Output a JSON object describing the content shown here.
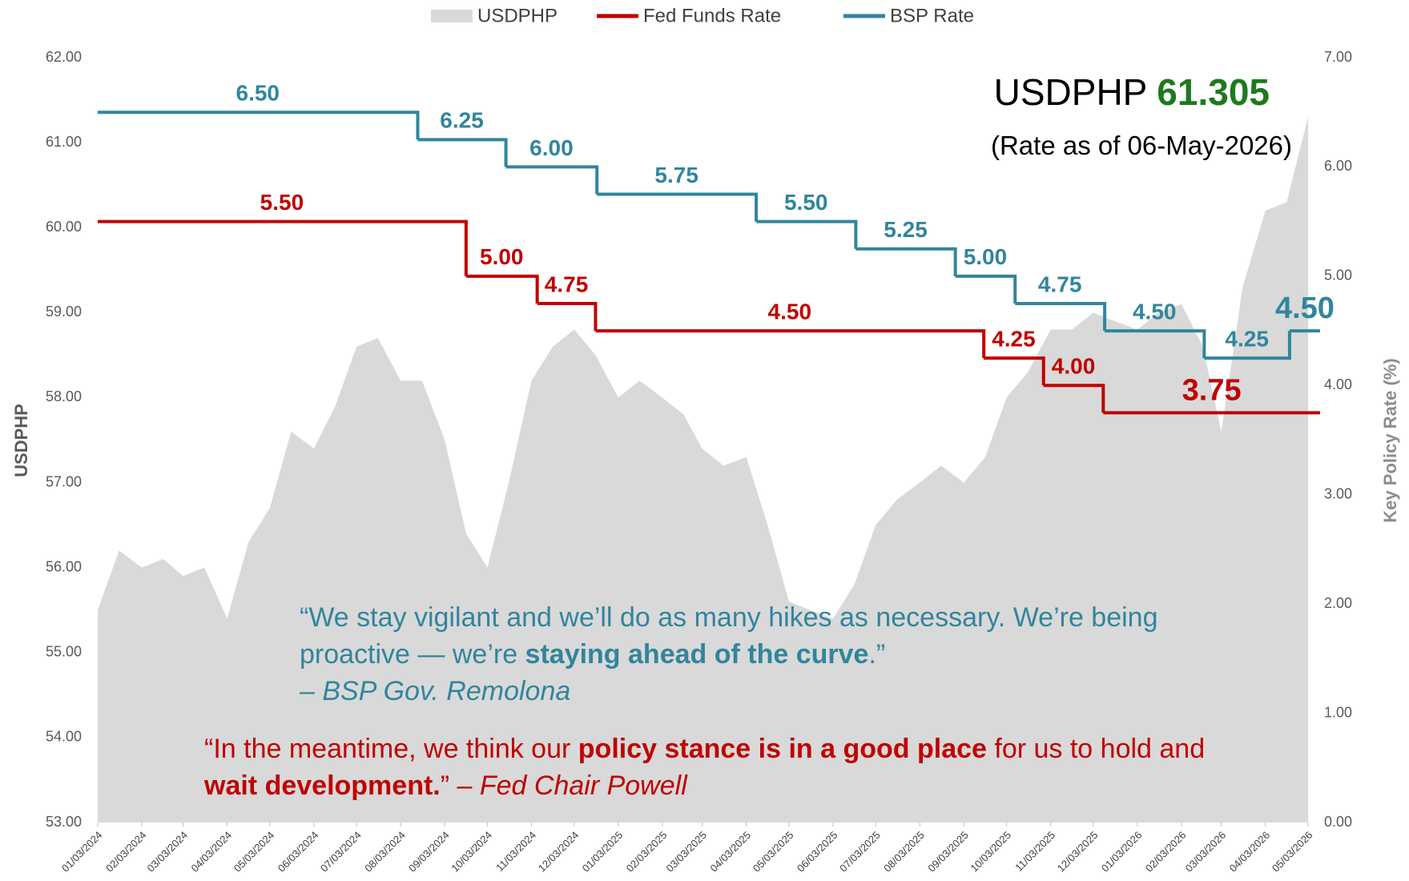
{
  "chart_data": {
    "type": "area-step",
    "xlim": [
      "01/03/2024",
      "05/03/2026"
    ],
    "xticks": [
      "01/03/2024",
      "02/03/2024",
      "03/03/2024",
      "04/03/2024",
      "05/03/2024",
      "06/03/2024",
      "07/03/2024",
      "08/03/2024",
      "09/03/2024",
      "10/03/2024",
      "11/03/2024",
      "12/03/2024",
      "01/03/2025",
      "02/03/2025",
      "03/03/2025",
      "04/03/2025",
      "05/03/2025",
      "06/03/2025",
      "07/03/2025",
      "08/03/2025",
      "09/03/2025",
      "10/03/2025",
      "11/03/2025",
      "12/03/2025",
      "01/03/2026",
      "02/03/2026",
      "03/03/2026",
      "04/03/2026",
      "05/03/2026"
    ],
    "ylabel": "USDPHP",
    "ylim": [
      53,
      62
    ],
    "yticks": [
      {
        "value": 53,
        "label": "53.00"
      },
      {
        "value": 54,
        "label": "54.00"
      },
      {
        "value": 55,
        "label": "55.00"
      },
      {
        "value": 56,
        "label": "56.00"
      },
      {
        "value": 57,
        "label": "57.00"
      },
      {
        "value": 58,
        "label": "58.00"
      },
      {
        "value": 59,
        "label": "59.00"
      },
      {
        "value": 60,
        "label": "60.00"
      },
      {
        "value": 61,
        "label": "61.00"
      },
      {
        "value": 62,
        "label": "62.00"
      }
    ],
    "y2label": "Key Policy Rate (%)",
    "y2lim": [
      0,
      7
    ],
    "y2ticks": [
      {
        "value": 0,
        "label": "0.00"
      },
      {
        "value": 1,
        "label": "1.00"
      },
      {
        "value": 2,
        "label": "2.00"
      },
      {
        "value": 3,
        "label": "3.00"
      },
      {
        "value": 4,
        "label": "4.00"
      },
      {
        "value": 5,
        "label": "5.00"
      },
      {
        "value": 6,
        "label": "6.00"
      },
      {
        "value": 7,
        "label": "7.00"
      }
    ],
    "series": [
      {
        "name": "USDPHP",
        "kind": "area",
        "color": "#d9d9d9",
        "x": [
          "01/03/2024",
          "01/18/2024",
          "02/03/2024",
          "02/18/2024",
          "03/03/2024",
          "03/18/2024",
          "04/03/2024",
          "04/18/2024",
          "05/03/2024",
          "05/18/2024",
          "06/03/2024",
          "06/18/2024",
          "07/03/2024",
          "07/18/2024",
          "08/03/2024",
          "08/18/2024",
          "09/03/2024",
          "09/18/2024",
          "10/03/2024",
          "10/18/2024",
          "11/03/2024",
          "11/18/2024",
          "12/03/2024",
          "12/18/2024",
          "01/03/2025",
          "01/18/2025",
          "02/03/2025",
          "02/18/2025",
          "03/03/2025",
          "03/18/2025",
          "04/03/2025",
          "04/18/2025",
          "05/03/2025",
          "05/18/2025",
          "06/03/2025",
          "06/18/2025",
          "07/03/2025",
          "07/18/2025",
          "08/03/2025",
          "08/18/2025",
          "09/03/2025",
          "09/18/2025",
          "10/03/2025",
          "10/18/2025",
          "11/03/2025",
          "11/18/2025",
          "12/03/2025",
          "12/18/2025",
          "01/03/2026",
          "01/18/2026",
          "02/03/2026",
          "02/18/2026",
          "03/03/2026",
          "03/18/2026",
          "04/03/2026",
          "04/18/2026",
          "05/03/2026"
        ],
        "values": [
          55.5,
          56.2,
          56.0,
          56.1,
          55.9,
          56.0,
          55.4,
          56.3,
          56.7,
          57.6,
          57.4,
          57.9,
          58.6,
          58.7,
          58.2,
          58.2,
          57.5,
          56.4,
          56.0,
          57.0,
          58.2,
          58.6,
          58.8,
          58.5,
          58.0,
          58.2,
          58.0,
          57.8,
          57.4,
          57.2,
          57.3,
          56.5,
          55.6,
          55.5,
          55.4,
          55.8,
          56.5,
          56.8,
          57.0,
          57.2,
          57.0,
          57.3,
          58.0,
          58.3,
          58.8,
          58.8,
          59.0,
          58.9,
          58.8,
          59.0,
          59.1,
          58.6,
          57.6,
          59.3,
          60.2,
          60.3,
          61.3
        ]
      },
      {
        "name": "Fed Funds Rate",
        "kind": "step",
        "axis": "y2",
        "color": "#c00000",
        "x": [
          "01/03/2024",
          "09/18/2024",
          "11/07/2024",
          "12/18/2024",
          "09/17/2025",
          "10/29/2025",
          "12/10/2025"
        ],
        "values": [
          5.5,
          5.0,
          4.75,
          4.5,
          4.25,
          4.0,
          3.75
        ],
        "value_labels": [
          "5.50",
          "5.00",
          "4.75",
          "4.50",
          "4.25",
          "4.00",
          "3.75"
        ]
      },
      {
        "name": "BSP Rate",
        "kind": "step",
        "axis": "y2",
        "color": "#31859c",
        "x": [
          "01/03/2024",
          "08/15/2024",
          "10/16/2024",
          "12/19/2024",
          "04/10/2025",
          "06/19/2025",
          "08/28/2025",
          "10/09/2025",
          "12/11/2025",
          "02/19/2026",
          "04/20/2026"
        ],
        "values": [
          6.5,
          6.25,
          6.0,
          5.75,
          5.5,
          5.25,
          5.0,
          4.75,
          4.5,
          4.25,
          4.5
        ],
        "value_labels": [
          "6.50",
          "6.25",
          "6.00",
          "5.75",
          "5.50",
          "5.25",
          "5.00",
          "4.75",
          "4.50",
          "4.25",
          "4.50"
        ]
      }
    ],
    "legend": "top",
    "annotation": {
      "label": "USDPHP",
      "value": 61.305,
      "color": "#1e7a1e",
      "note": "(Rate as of 06-May-2026)"
    },
    "quotes": [
      {
        "color": "#31859c",
        "segments": [
          {
            "text": "“We stay vigilant and we’ll do as many hikes as necessary. We’re being proactive — we’re ",
            "style": "normal"
          },
          {
            "text": "staying ahead of the curve",
            "style": "bold"
          },
          {
            "text": ".”",
            "style": "normal"
          },
          {
            "text": "– BSP Gov. Remolona",
            "style": "italic-block"
          }
        ]
      },
      {
        "color": "#c00000",
        "segments": [
          {
            "text": "“In the meantime, we think our ",
            "style": "normal"
          },
          {
            "text": "policy stance is in a good place",
            "style": "bold"
          },
          {
            "text": " for us to hold and ",
            "style": "normal"
          },
          {
            "text": "wait development.",
            "style": "bold"
          },
          {
            "text": "” ",
            "style": "normal"
          },
          {
            "text": "– Fed Chair Powell",
            "style": "italic"
          }
        ]
      }
    ]
  }
}
